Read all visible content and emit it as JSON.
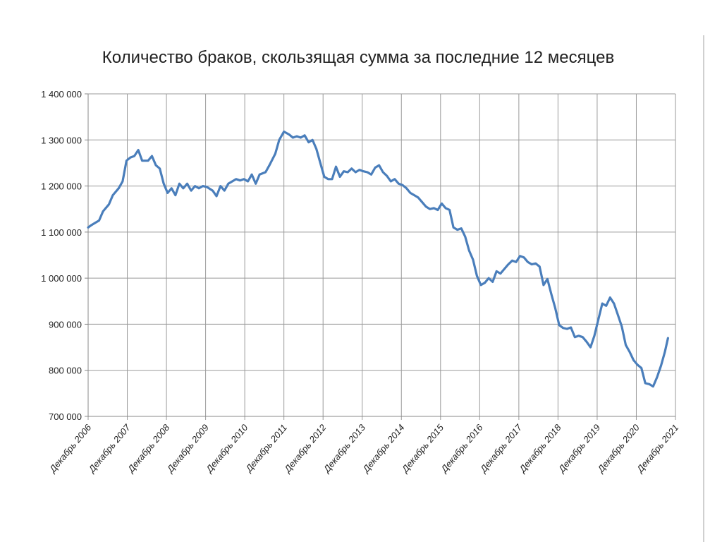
{
  "chart_data": {
    "type": "line",
    "title": "Количество браков, скользящая сумма за последние 12 месяцев",
    "xlabel": "",
    "ylabel": "",
    "ylim": [
      700000,
      1400000
    ],
    "grid": true,
    "y_ticks": [
      "1 400 000",
      "1 300 000",
      "1 200 000",
      "1 100 000",
      "1 000 000",
      "900 000",
      "800 000",
      "700 000"
    ],
    "y_tick_values": [
      1400000,
      1300000,
      1200000,
      1100000,
      1000000,
      900000,
      800000,
      700000
    ],
    "x_ticks": [
      "Декабрь 2006",
      "Декабрь 2007",
      "Декабрь 2008",
      "Декабрь 2009",
      "Декабрь 2010",
      "Декабрь 2011",
      "Декабрь 2012",
      "Декабрь 2013",
      "Декабрь 2014",
      "Декабрь 2015",
      "Декабрь 2016",
      "Декабрь 2017",
      "Декабрь 2018",
      "Декабрь 2019",
      "Декабрь 2020",
      "Декабрь 2021"
    ],
    "series": [
      {
        "color": "#4a7ebb",
        "points": [
          [
            2006.92,
            1110000
          ],
          [
            2007.0,
            1115000
          ],
          [
            2007.1,
            1120000
          ],
          [
            2007.2,
            1125000
          ],
          [
            2007.3,
            1145000
          ],
          [
            2007.45,
            1160000
          ],
          [
            2007.55,
            1180000
          ],
          [
            2007.7,
            1195000
          ],
          [
            2007.8,
            1210000
          ],
          [
            2007.9,
            1255000
          ],
          [
            2008.0,
            1262000
          ],
          [
            2008.1,
            1265000
          ],
          [
            2008.2,
            1278000
          ],
          [
            2008.3,
            1255000
          ],
          [
            2008.45,
            1255000
          ],
          [
            2008.55,
            1265000
          ],
          [
            2008.65,
            1245000
          ],
          [
            2008.75,
            1238000
          ],
          [
            2008.85,
            1205000
          ],
          [
            2008.95,
            1185000
          ],
          [
            2009.05,
            1195000
          ],
          [
            2009.15,
            1180000
          ],
          [
            2009.25,
            1205000
          ],
          [
            2009.35,
            1195000
          ],
          [
            2009.45,
            1205000
          ],
          [
            2009.55,
            1190000
          ],
          [
            2009.65,
            1200000
          ],
          [
            2009.75,
            1195000
          ],
          [
            2009.85,
            1200000
          ],
          [
            2009.95,
            1198000
          ],
          [
            2010.1,
            1190000
          ],
          [
            2010.2,
            1178000
          ],
          [
            2010.3,
            1200000
          ],
          [
            2010.4,
            1190000
          ],
          [
            2010.5,
            1205000
          ],
          [
            2010.6,
            1210000
          ],
          [
            2010.7,
            1215000
          ],
          [
            2010.8,
            1212000
          ],
          [
            2010.9,
            1215000
          ],
          [
            2011.0,
            1210000
          ],
          [
            2011.1,
            1225000
          ],
          [
            2011.2,
            1205000
          ],
          [
            2011.3,
            1225000
          ],
          [
            2011.45,
            1230000
          ],
          [
            2011.55,
            1245000
          ],
          [
            2011.7,
            1270000
          ],
          [
            2011.8,
            1300000
          ],
          [
            2011.92,
            1318000
          ],
          [
            2012.05,
            1312000
          ],
          [
            2012.15,
            1305000
          ],
          [
            2012.25,
            1308000
          ],
          [
            2012.35,
            1305000
          ],
          [
            2012.45,
            1310000
          ],
          [
            2012.55,
            1295000
          ],
          [
            2012.65,
            1300000
          ],
          [
            2012.75,
            1280000
          ],
          [
            2012.85,
            1250000
          ],
          [
            2012.95,
            1220000
          ],
          [
            2013.05,
            1215000
          ],
          [
            2013.15,
            1215000
          ],
          [
            2013.25,
            1242000
          ],
          [
            2013.35,
            1220000
          ],
          [
            2013.45,
            1232000
          ],
          [
            2013.55,
            1230000
          ],
          [
            2013.65,
            1238000
          ],
          [
            2013.75,
            1230000
          ],
          [
            2013.85,
            1235000
          ],
          [
            2013.95,
            1232000
          ],
          [
            2014.05,
            1230000
          ],
          [
            2014.15,
            1225000
          ],
          [
            2014.25,
            1240000
          ],
          [
            2014.35,
            1245000
          ],
          [
            2014.45,
            1230000
          ],
          [
            2014.55,
            1222000
          ],
          [
            2014.65,
            1210000
          ],
          [
            2014.75,
            1215000
          ],
          [
            2014.85,
            1205000
          ],
          [
            2014.95,
            1202000
          ],
          [
            2015.05,
            1195000
          ],
          [
            2015.15,
            1185000
          ],
          [
            2015.25,
            1180000
          ],
          [
            2015.35,
            1175000
          ],
          [
            2015.45,
            1165000
          ],
          [
            2015.55,
            1155000
          ],
          [
            2015.65,
            1150000
          ],
          [
            2015.75,
            1152000
          ],
          [
            2015.85,
            1148000
          ],
          [
            2015.95,
            1162000
          ],
          [
            2016.05,
            1152000
          ],
          [
            2016.15,
            1148000
          ],
          [
            2016.25,
            1110000
          ],
          [
            2016.35,
            1105000
          ],
          [
            2016.45,
            1108000
          ],
          [
            2016.55,
            1090000
          ],
          [
            2016.65,
            1060000
          ],
          [
            2016.75,
            1040000
          ],
          [
            2016.85,
            1005000
          ],
          [
            2016.95,
            985000
          ],
          [
            2017.05,
            990000
          ],
          [
            2017.15,
            1000000
          ],
          [
            2017.25,
            992000
          ],
          [
            2017.35,
            1015000
          ],
          [
            2017.45,
            1010000
          ],
          [
            2017.55,
            1020000
          ],
          [
            2017.65,
            1030000
          ],
          [
            2017.75,
            1038000
          ],
          [
            2017.85,
            1035000
          ],
          [
            2017.95,
            1048000
          ],
          [
            2018.05,
            1045000
          ],
          [
            2018.15,
            1035000
          ],
          [
            2018.25,
            1030000
          ],
          [
            2018.35,
            1032000
          ],
          [
            2018.45,
            1025000
          ],
          [
            2018.55,
            985000
          ],
          [
            2018.65,
            998000
          ],
          [
            2018.75,
            965000
          ],
          [
            2018.85,
            935000
          ],
          [
            2018.95,
            898000
          ],
          [
            2019.05,
            892000
          ],
          [
            2019.15,
            890000
          ],
          [
            2019.25,
            893000
          ],
          [
            2019.35,
            872000
          ],
          [
            2019.45,
            875000
          ],
          [
            2019.55,
            872000
          ],
          [
            2019.65,
            862000
          ],
          [
            2019.75,
            850000
          ],
          [
            2019.85,
            875000
          ],
          [
            2019.95,
            910000
          ],
          [
            2020.05,
            945000
          ],
          [
            2020.15,
            940000
          ],
          [
            2020.25,
            958000
          ],
          [
            2020.35,
            945000
          ],
          [
            2020.45,
            920000
          ],
          [
            2020.55,
            895000
          ],
          [
            2020.65,
            855000
          ],
          [
            2020.75,
            840000
          ],
          [
            2020.85,
            822000
          ],
          [
            2020.95,
            812000
          ],
          [
            2021.05,
            805000
          ],
          [
            2021.15,
            772000
          ],
          [
            2021.25,
            770000
          ],
          [
            2021.35,
            765000
          ],
          [
            2021.45,
            785000
          ],
          [
            2021.55,
            810000
          ],
          [
            2021.65,
            840000
          ],
          [
            2021.73,
            870000
          ]
        ]
      }
    ]
  }
}
